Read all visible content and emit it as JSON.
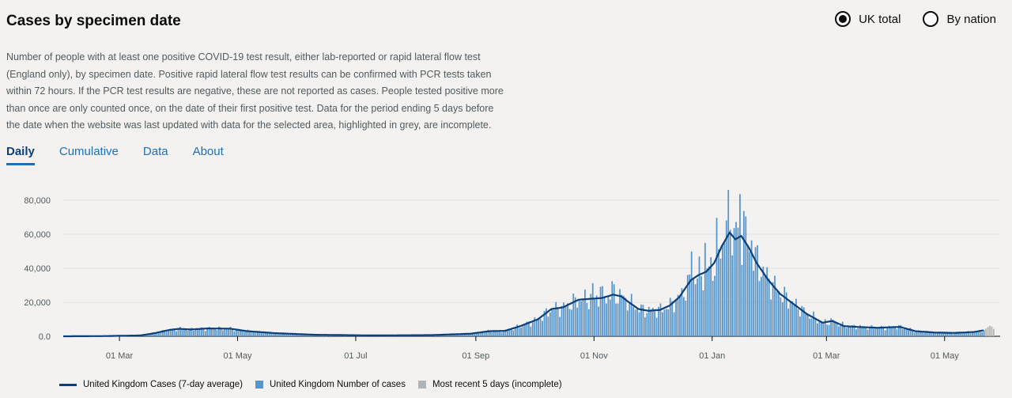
{
  "header": {
    "title": "Cases by specimen date"
  },
  "radios": [
    {
      "label": "UK total",
      "selected": true
    },
    {
      "label": "By nation",
      "selected": false
    }
  ],
  "description": "Number of people with at least one positive COVID-19 test result, either lab-reported or rapid lateral flow test (England only), by specimen date. Positive rapid lateral flow test results can be confirmed with PCR tests taken within 72 hours. If the PCR test results are negative, these are not reported as cases. People tested positive more than once are only counted once, on the date of their first positive test. Data for the period ending 5 days before the date when the website was last updated with data for the selected area, highlighted in grey, are incomplete.",
  "tabs": [
    {
      "label": "Daily",
      "active": true
    },
    {
      "label": "Cumulative",
      "active": false
    },
    {
      "label": "Data",
      "active": false
    },
    {
      "label": "About",
      "active": false
    }
  ],
  "legend": {
    "line": "United Kingdom Cases (7-day average)",
    "bars": "United Kingdom Number of cases",
    "incomplete": "Most recent 5 days (incomplete)"
  },
  "colors": {
    "line": "#0b3f7a",
    "bars": "#5694ca",
    "incomplete": "#b1b4b6",
    "tab": "#1d70b8"
  },
  "chart_data": {
    "type": "bar",
    "title": "Cases by specimen date",
    "ylim": [
      0,
      80000
    ],
    "y_ticks": [
      "0.0",
      "20,000",
      "40,000",
      "60,000",
      "80,000"
    ],
    "x_tick_labels": [
      "01 Mar",
      "01 May",
      "01 Jul",
      "01 Sep",
      "01 Nov",
      "01 Jan",
      "01 Mar",
      "01 May"
    ],
    "grid": true,
    "legend_position": "bottom-left",
    "day_span": 480,
    "x_tick_day": [
      29,
      90,
      151,
      213,
      274,
      335,
      394,
      455
    ],
    "avg_keypoints": [
      [
        0,
        0
      ],
      [
        20,
        100
      ],
      [
        40,
        500
      ],
      [
        48,
        2000
      ],
      [
        55,
        3800
      ],
      [
        60,
        4400
      ],
      [
        66,
        4000
      ],
      [
        74,
        4600
      ],
      [
        86,
        4500
      ],
      [
        95,
        3000
      ],
      [
        110,
        1800
      ],
      [
        130,
        900
      ],
      [
        160,
        500
      ],
      [
        190,
        700
      ],
      [
        210,
        1500
      ],
      [
        220,
        3000
      ],
      [
        228,
        3200
      ],
      [
        236,
        6000
      ],
      [
        245,
        10000
      ],
      [
        252,
        16000
      ],
      [
        258,
        17000
      ],
      [
        266,
        21500
      ],
      [
        272,
        22000
      ],
      [
        278,
        22500
      ],
      [
        284,
        24500
      ],
      [
        288,
        23500
      ],
      [
        292,
        20000
      ],
      [
        297,
        16000
      ],
      [
        302,
        15000
      ],
      [
        308,
        15500
      ],
      [
        313,
        18000
      ],
      [
        318,
        23000
      ],
      [
        324,
        33000
      ],
      [
        328,
        36000
      ],
      [
        332,
        38000
      ],
      [
        336,
        43000
      ],
      [
        340,
        53000
      ],
      [
        344,
        61000
      ],
      [
        347,
        57000
      ],
      [
        350,
        59000
      ],
      [
        354,
        52000
      ],
      [
        358,
        43000
      ],
      [
        364,
        33000
      ],
      [
        370,
        25000
      ],
      [
        377,
        19000
      ],
      [
        384,
        13000
      ],
      [
        392,
        8000
      ],
      [
        397,
        9000
      ],
      [
        403,
        6000
      ],
      [
        410,
        5500
      ],
      [
        420,
        5000
      ],
      [
        432,
        5500
      ],
      [
        440,
        3000
      ],
      [
        450,
        2200
      ],
      [
        460,
        2000
      ],
      [
        470,
        2500
      ],
      [
        475,
        3500
      ]
    ],
    "spikes": [
      [
        324,
        21000
      ],
      [
        331,
        15000
      ],
      [
        337,
        12000
      ],
      [
        341,
        9000
      ],
      [
        342,
        8000
      ],
      [
        343,
        21000
      ],
      [
        344,
        10000
      ],
      [
        347,
        10000
      ],
      [
        349,
        19000
      ],
      [
        351,
        20000
      ],
      [
        355,
        8000
      ],
      [
        273,
        7000
      ],
      [
        277,
        9000
      ],
      [
        283,
        6000
      ]
    ],
    "incomplete_values": [
      4500,
      5500,
      6200,
      5800,
      4300
    ]
  }
}
